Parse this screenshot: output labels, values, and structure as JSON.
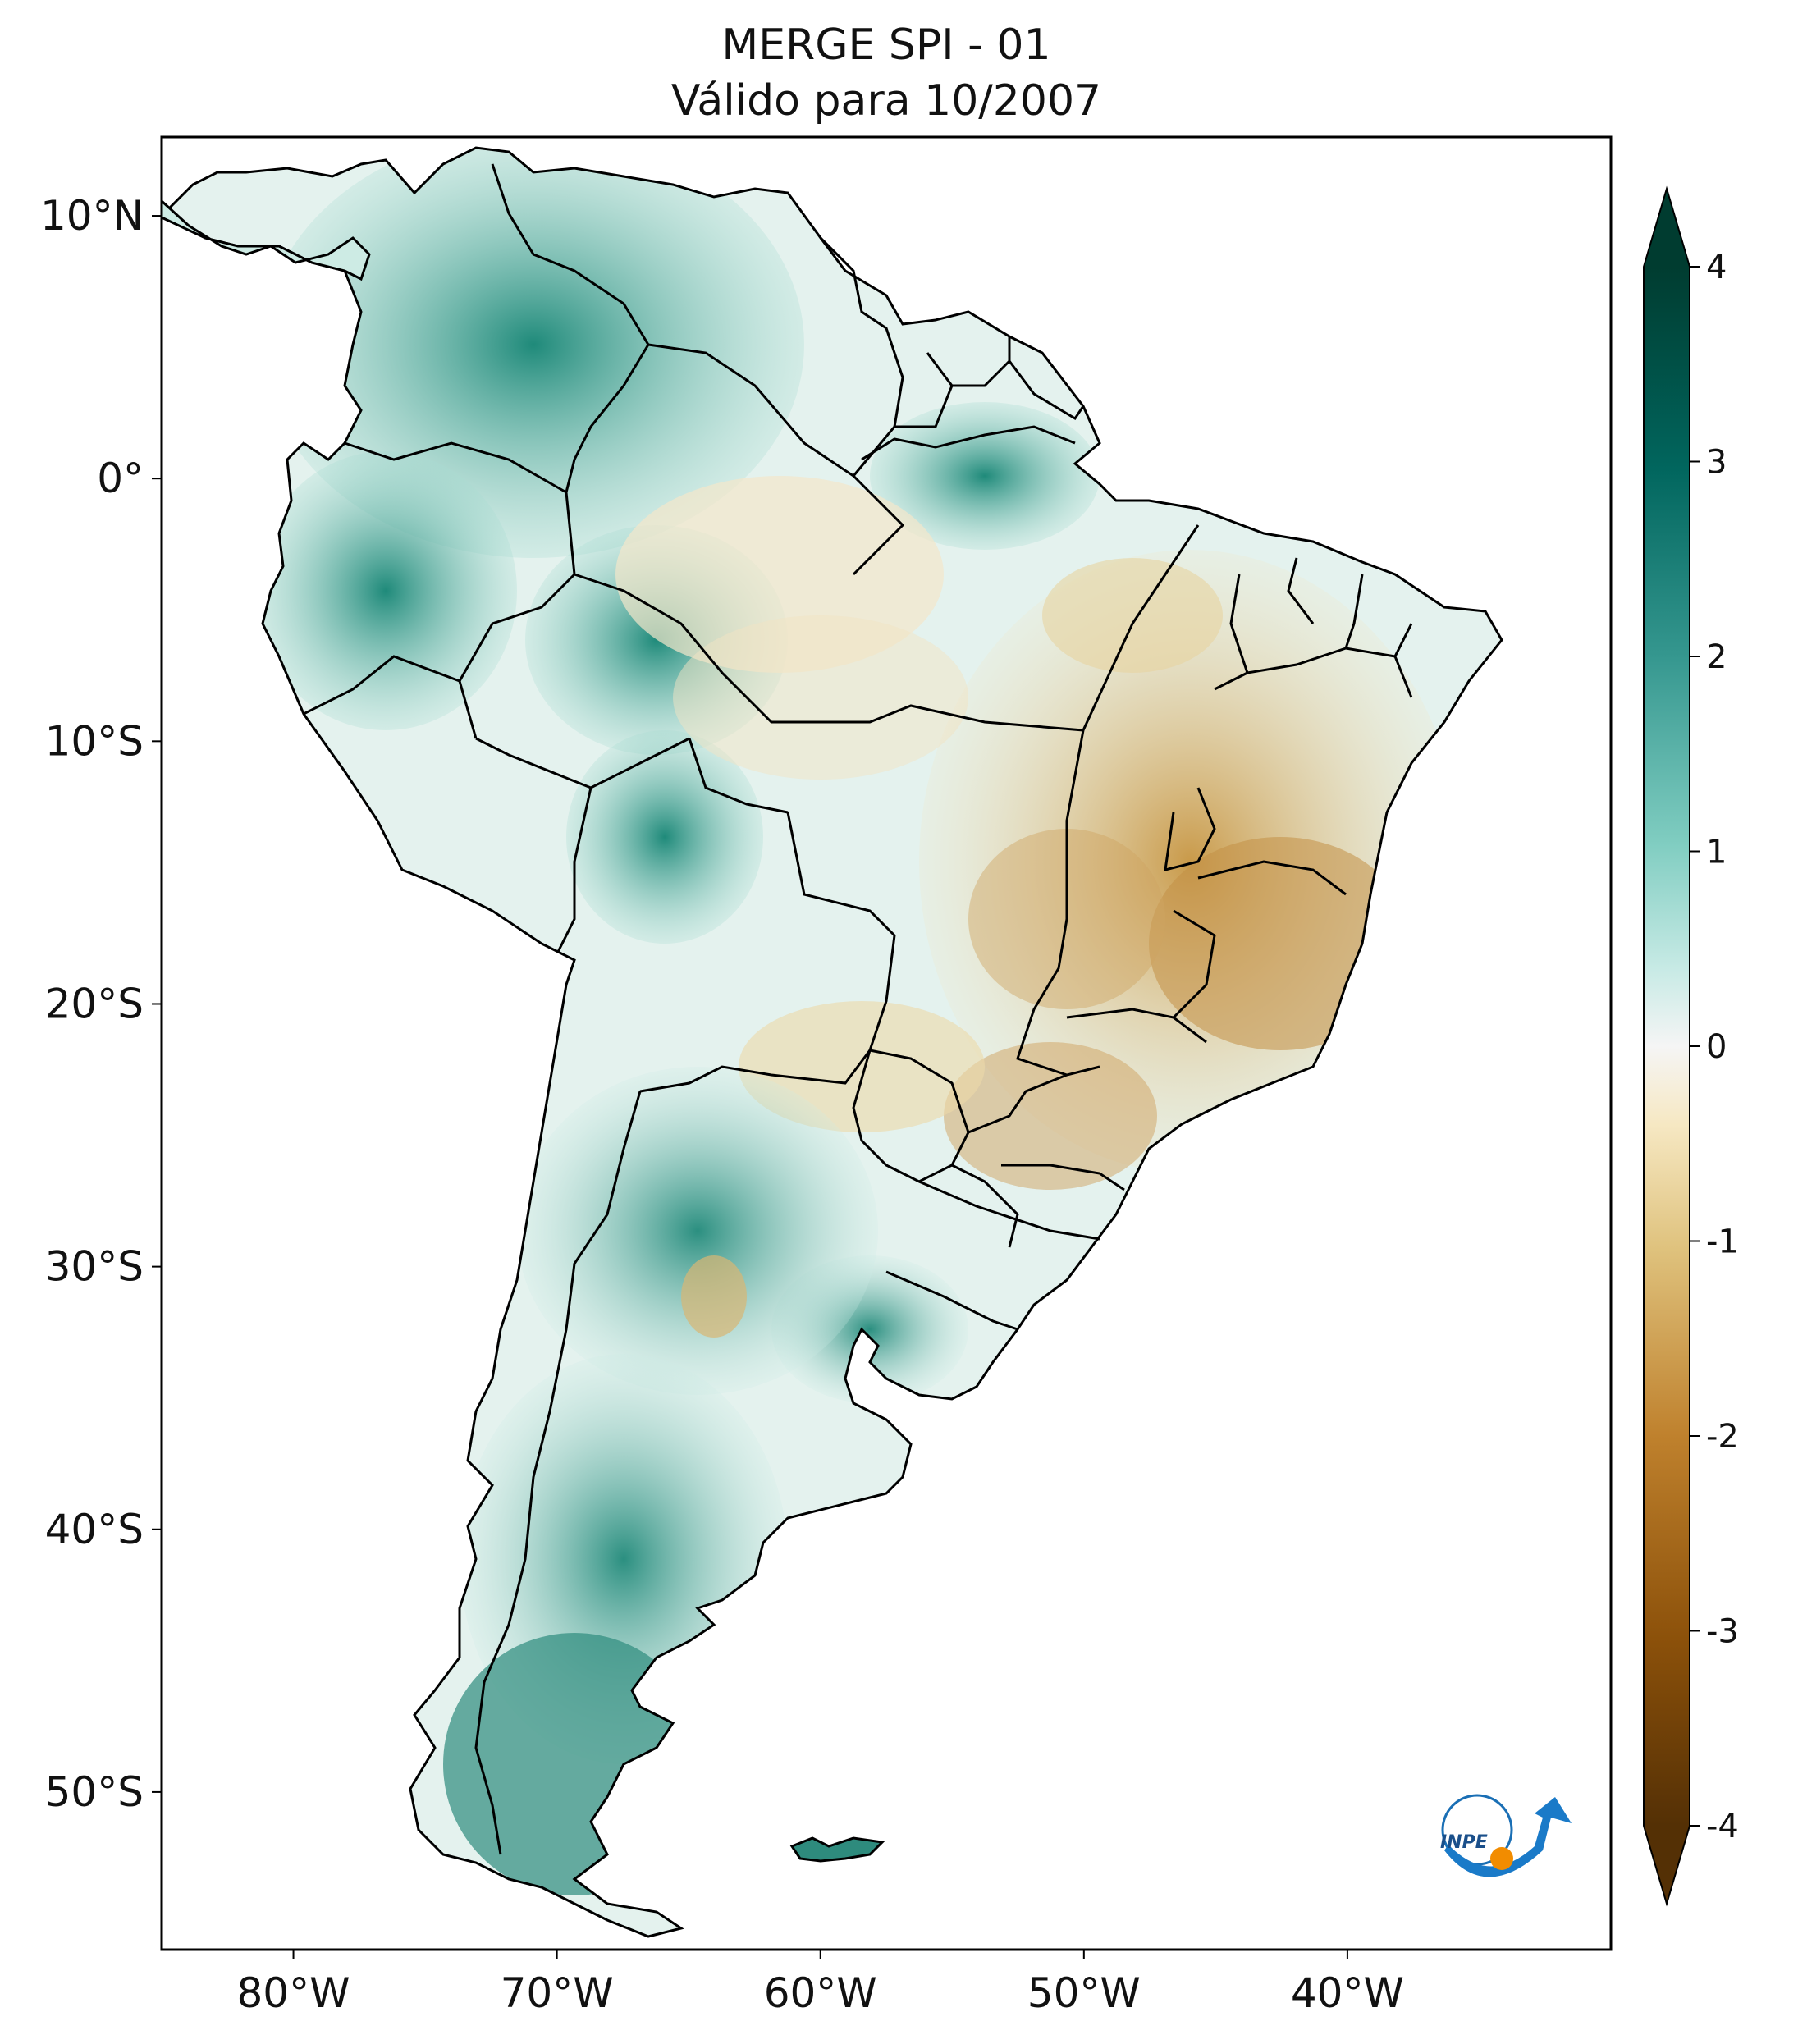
{
  "title": {
    "line1": "MERGE   SPI - 01",
    "line2": "Válido para 10/2007"
  },
  "axes": {
    "lat_labels": [
      "10°N",
      "0°",
      "10°S",
      "20°S",
      "30°S",
      "40°S",
      "50°S"
    ],
    "lon_labels": [
      "80°W",
      "70°W",
      "60°W",
      "50°W",
      "40°W"
    ],
    "lat_values": [
      10,
      0,
      -10,
      -20,
      -30,
      -40,
      -50
    ],
    "lon_values": [
      -80,
      -70,
      -60,
      -50,
      -40
    ],
    "lon_range": [
      -85,
      -30
    ],
    "lat_range": [
      -56,
      13
    ]
  },
  "colorbar": {
    "labels": [
      "4",
      "3",
      "2",
      "1",
      "0",
      "-1",
      "-2",
      "-3",
      "-4"
    ],
    "values": [
      4,
      3,
      2,
      1,
      0,
      -1,
      -2,
      -3,
      -4
    ],
    "range": [
      -4,
      4
    ],
    "extend": "both",
    "colormap": "BrBG",
    "colors": {
      "max": "#003c30",
      "high": "#35978f",
      "mid": "#f5f5f5",
      "low": "#bf812d",
      "min": "#543005"
    }
  },
  "logo": {
    "text": "INPE"
  },
  "colors": {
    "land_wet": "#7fcdbb",
    "land_dry": "#dfc27d",
    "border": "#000000",
    "frame": "#000000"
  }
}
